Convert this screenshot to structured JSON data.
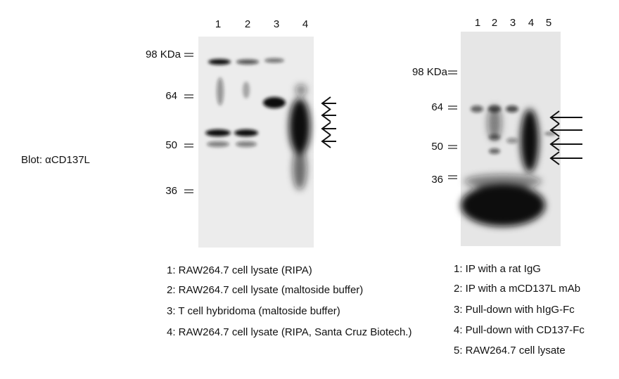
{
  "blot_label": "Blot: αCD137L",
  "left_panel": {
    "lanes": [
      "1",
      "2",
      "3",
      "4"
    ],
    "markers": [
      "98 KDa",
      "64",
      "50",
      "36"
    ],
    "legend": [
      "1: RAW264.7 cell lysate (RIPA)",
      "2: RAW264.7 cell lysate (maltoside buffer)",
      "3: T cell hybridoma (maltoside buffer)",
      "4: RAW264.7 cell lysate (RIPA, Santa Cruz Biotech.)"
    ]
  },
  "right_panel": {
    "lanes": [
      "1",
      "2",
      "3",
      "4",
      "5"
    ],
    "markers": [
      "98 KDa",
      "64",
      "50",
      "36"
    ],
    "legend": [
      "1: IP with a rat IgG",
      "2: IP with a mCD137L mAb",
      "3: Pull-down with hIgG-Fc",
      "4: Pull-down with CD137-Fc",
      "5: RAW264.7 cell lysate"
    ]
  }
}
